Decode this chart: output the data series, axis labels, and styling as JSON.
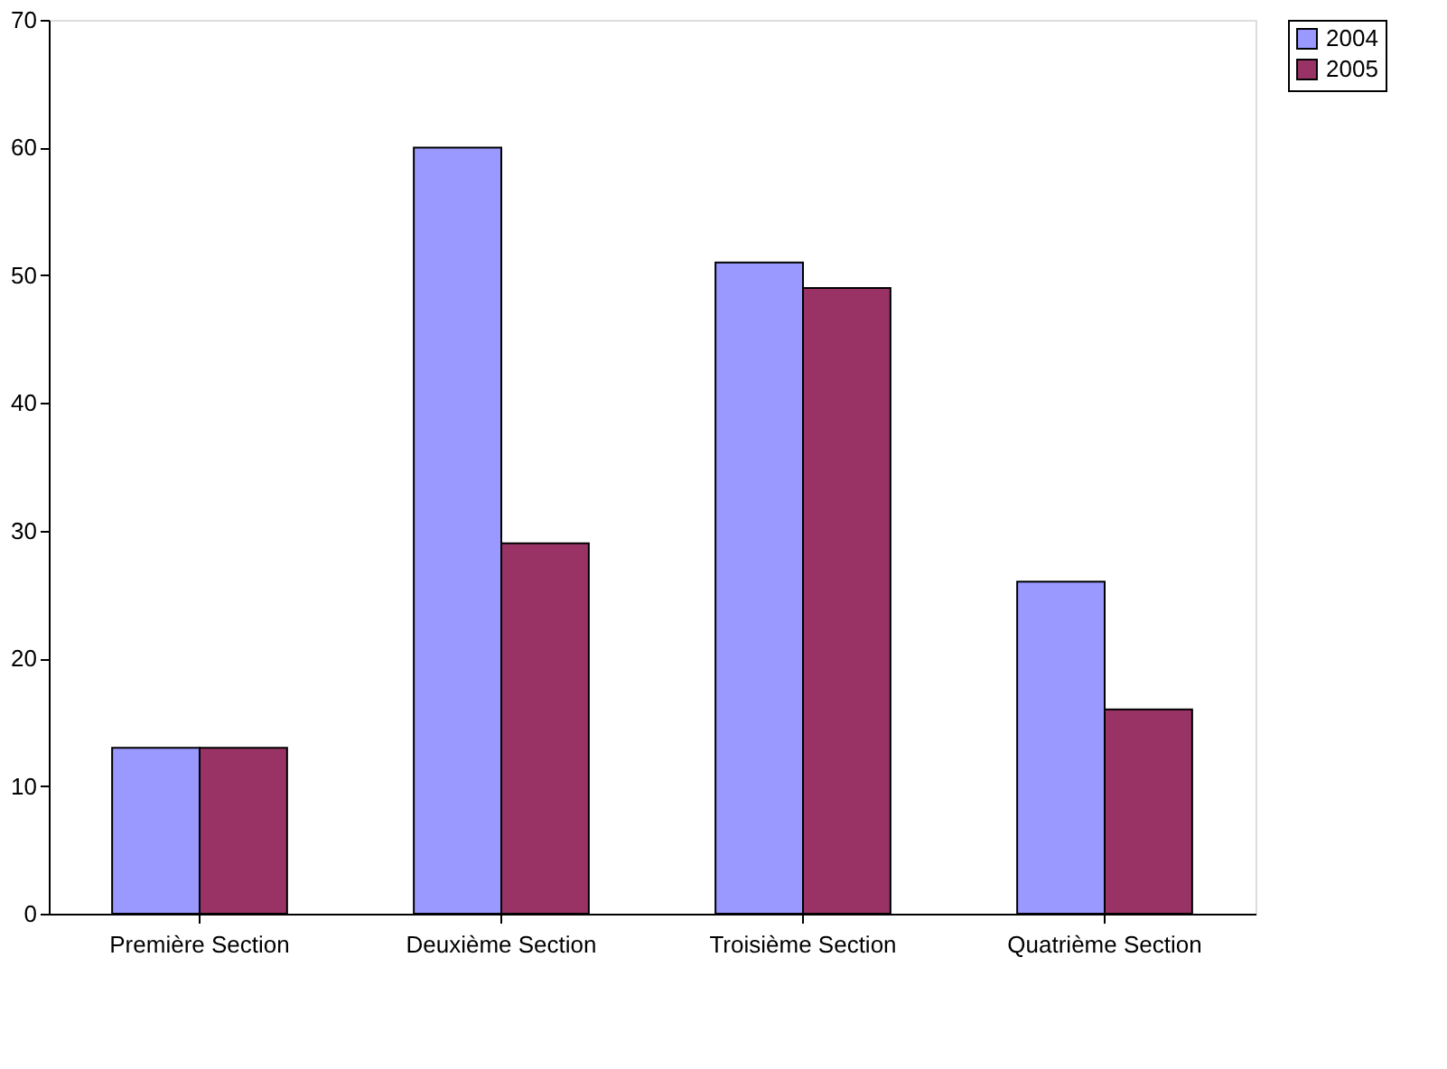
{
  "chart_data": {
    "type": "bar",
    "categories": [
      "Première Section",
      "Deuxième Section",
      "Troisième Section",
      "Quatrième Section"
    ],
    "series": [
      {
        "name": "2004",
        "color": "#9999ff",
        "values": [
          13,
          60,
          51,
          26
        ]
      },
      {
        "name": "2005",
        "color": "#993366",
        "values": [
          13,
          29,
          49,
          16
        ]
      }
    ],
    "ylim": [
      0,
      70
    ],
    "yticks": [
      0,
      10,
      20,
      30,
      40,
      50,
      60,
      70
    ],
    "grid": false,
    "legend": "right"
  }
}
